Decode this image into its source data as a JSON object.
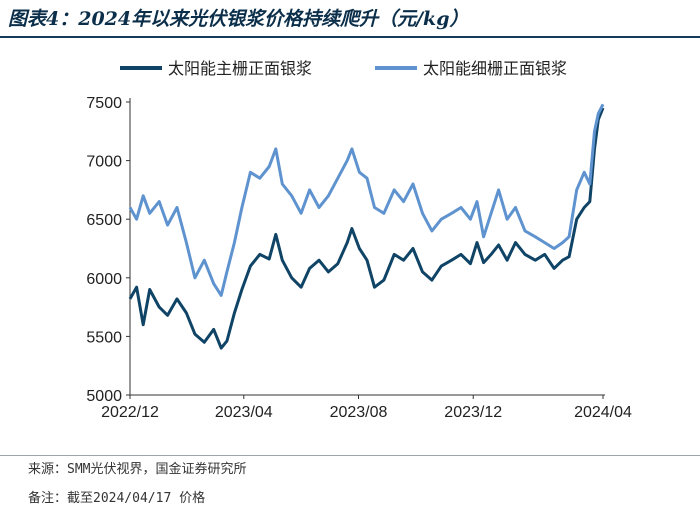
{
  "header": {
    "title": "图表4：2024年以来光伏银浆价格持续爬升（元/kg）"
  },
  "footer": {
    "source": "来源：SMM光伏视界，国金证券研究所",
    "remark": "备注：截至2024/04/17 价格"
  },
  "colors": {
    "main_grid": "#0f4466",
    "fine_grid": "#5f93cf",
    "axis": "#333333",
    "title": "#0b2f4a"
  },
  "chart_data": {
    "type": "line",
    "title": "2024年以来光伏银浆价格持续爬升（元/kg）",
    "xlabel": "",
    "ylabel": "",
    "x_ticks": [
      "2022/12",
      "2023/04",
      "2023/08",
      "2023/12",
      "2024/04"
    ],
    "x_range": [
      "2022-12-01",
      "2024-04-17"
    ],
    "ylim": [
      5000,
      7500
    ],
    "y_ticks": [
      5000,
      5500,
      6000,
      6500,
      7000,
      7500
    ],
    "grid": false,
    "legend_position": "top",
    "series": [
      {
        "name": "太阳能主栅正面银浆",
        "color": "#0f4466",
        "points": [
          [
            "2022-12-01",
            5820
          ],
          [
            "2022-12-08",
            5920
          ],
          [
            "2022-12-15",
            5600
          ],
          [
            "2022-12-22",
            5900
          ],
          [
            "2023-01-01",
            5750
          ],
          [
            "2023-01-10",
            5680
          ],
          [
            "2023-01-20",
            5820
          ],
          [
            "2023-01-30",
            5700
          ],
          [
            "2023-02-08",
            5520
          ],
          [
            "2023-02-18",
            5450
          ],
          [
            "2023-02-28",
            5560
          ],
          [
            "2023-03-08",
            5400
          ],
          [
            "2023-03-14",
            5460
          ],
          [
            "2023-03-22",
            5700
          ],
          [
            "2023-03-30",
            5900
          ],
          [
            "2023-04-08",
            6100
          ],
          [
            "2023-04-18",
            6200
          ],
          [
            "2023-04-28",
            6160
          ],
          [
            "2023-05-05",
            6370
          ],
          [
            "2023-05-12",
            6150
          ],
          [
            "2023-05-22",
            6000
          ],
          [
            "2023-06-01",
            5920
          ],
          [
            "2023-06-10",
            6080
          ],
          [
            "2023-06-20",
            6150
          ],
          [
            "2023-06-30",
            6050
          ],
          [
            "2023-07-10",
            6120
          ],
          [
            "2023-07-20",
            6300
          ],
          [
            "2023-07-25",
            6420
          ],
          [
            "2023-08-02",
            6250
          ],
          [
            "2023-08-10",
            6150
          ],
          [
            "2023-08-18",
            5920
          ],
          [
            "2023-08-28",
            5980
          ],
          [
            "2023-09-08",
            6200
          ],
          [
            "2023-09-18",
            6150
          ],
          [
            "2023-09-28",
            6250
          ],
          [
            "2023-10-08",
            6050
          ],
          [
            "2023-10-18",
            5980
          ],
          [
            "2023-10-28",
            6100
          ],
          [
            "2023-11-08",
            6150
          ],
          [
            "2023-11-18",
            6200
          ],
          [
            "2023-11-28",
            6120
          ],
          [
            "2023-12-05",
            6300
          ],
          [
            "2023-12-12",
            6130
          ],
          [
            "2023-12-20",
            6200
          ],
          [
            "2023-12-28",
            6280
          ],
          [
            "2024-01-06",
            6150
          ],
          [
            "2024-01-15",
            6300
          ],
          [
            "2024-01-25",
            6200
          ],
          [
            "2024-02-05",
            6150
          ],
          [
            "2024-02-15",
            6200
          ],
          [
            "2024-02-25",
            6080
          ],
          [
            "2024-03-05",
            6150
          ],
          [
            "2024-03-12",
            6180
          ],
          [
            "2024-03-20",
            6500
          ],
          [
            "2024-03-28",
            6600
          ],
          [
            "2024-04-03",
            6650
          ],
          [
            "2024-04-08",
            7100
          ],
          [
            "2024-04-12",
            7350
          ],
          [
            "2024-04-17",
            7450
          ]
        ]
      },
      {
        "name": "太阳能细栅正面银浆",
        "color": "#5f93cf",
        "points": [
          [
            "2022-12-01",
            6600
          ],
          [
            "2022-12-08",
            6500
          ],
          [
            "2022-12-15",
            6700
          ],
          [
            "2022-12-22",
            6550
          ],
          [
            "2023-01-01",
            6650
          ],
          [
            "2023-01-10",
            6450
          ],
          [
            "2023-01-20",
            6600
          ],
          [
            "2023-01-30",
            6300
          ],
          [
            "2023-02-08",
            6000
          ],
          [
            "2023-02-18",
            6150
          ],
          [
            "2023-02-28",
            5950
          ],
          [
            "2023-03-08",
            5850
          ],
          [
            "2023-03-14",
            6050
          ],
          [
            "2023-03-22",
            6300
          ],
          [
            "2023-03-30",
            6600
          ],
          [
            "2023-04-08",
            6900
          ],
          [
            "2023-04-18",
            6850
          ],
          [
            "2023-04-28",
            6950
          ],
          [
            "2023-05-05",
            7100
          ],
          [
            "2023-05-12",
            6800
          ],
          [
            "2023-05-22",
            6700
          ],
          [
            "2023-06-01",
            6550
          ],
          [
            "2023-06-10",
            6750
          ],
          [
            "2023-06-20",
            6600
          ],
          [
            "2023-06-30",
            6700
          ],
          [
            "2023-07-10",
            6850
          ],
          [
            "2023-07-20",
            7000
          ],
          [
            "2023-07-25",
            7100
          ],
          [
            "2023-08-02",
            6900
          ],
          [
            "2023-08-10",
            6850
          ],
          [
            "2023-08-18",
            6600
          ],
          [
            "2023-08-28",
            6550
          ],
          [
            "2023-09-08",
            6750
          ],
          [
            "2023-09-18",
            6650
          ],
          [
            "2023-09-28",
            6800
          ],
          [
            "2023-10-08",
            6550
          ],
          [
            "2023-10-18",
            6400
          ],
          [
            "2023-10-28",
            6500
          ],
          [
            "2023-11-08",
            6550
          ],
          [
            "2023-11-18",
            6600
          ],
          [
            "2023-11-28",
            6500
          ],
          [
            "2023-12-05",
            6650
          ],
          [
            "2023-12-12",
            6350
          ],
          [
            "2023-12-20",
            6550
          ],
          [
            "2023-12-28",
            6750
          ],
          [
            "2024-01-06",
            6500
          ],
          [
            "2024-01-15",
            6600
          ],
          [
            "2024-01-25",
            6400
          ],
          [
            "2024-02-05",
            6350
          ],
          [
            "2024-02-15",
            6300
          ],
          [
            "2024-02-25",
            6250
          ],
          [
            "2024-03-05",
            6300
          ],
          [
            "2024-03-12",
            6350
          ],
          [
            "2024-03-20",
            6750
          ],
          [
            "2024-03-28",
            6900
          ],
          [
            "2024-04-03",
            6800
          ],
          [
            "2024-04-08",
            7250
          ],
          [
            "2024-04-12",
            7400
          ],
          [
            "2024-04-17",
            7480
          ]
        ]
      }
    ]
  }
}
